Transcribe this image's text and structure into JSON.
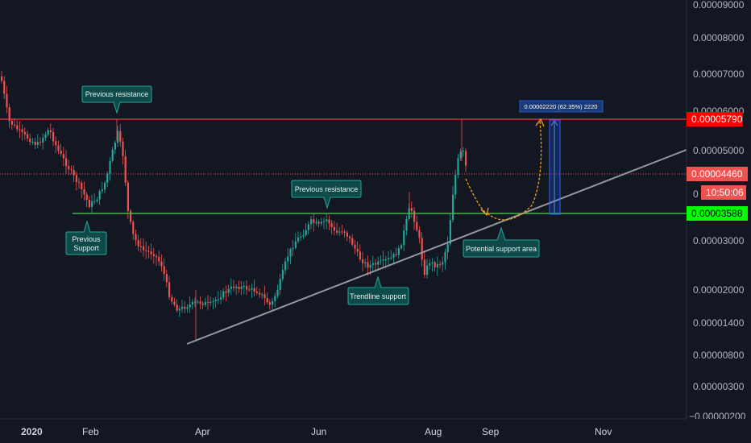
{
  "chart_data": {
    "type": "candlestick",
    "scale": "log",
    "colors": {
      "background": "#131722",
      "up": "#26a69a",
      "down": "#ef5350",
      "resistance_line": "#f23645",
      "support_line": "#4caf50",
      "trendline": "#9598a1",
      "projection": "#f7a21b",
      "measure": "#2962ff",
      "annotation_bg": "#0f4a4a",
      "annotation_border": "#26a69a"
    },
    "y_axis": {
      "ticks": [
        "0.00009000",
        "0.00008000",
        "0.00007000",
        "0.00006000",
        "0.00005000",
        "0.00003000",
        "0.00002000",
        "0.00001400",
        "0.00000800",
        "0.00000300",
        "−0.00000200"
      ],
      "partial_tick": "0"
    },
    "x_axis": {
      "ticks": [
        "2020",
        "Feb",
        "Apr",
        "Jun",
        "Aug",
        "Sep",
        "Nov"
      ]
    },
    "price_tags": {
      "resistance": "0.00005790",
      "last": "0.00004460",
      "countdown": "10:50:06",
      "support": "0.00003588"
    },
    "levels": {
      "resistance": 5.79e-05,
      "support": 3.588e-05,
      "last": 4.46e-05
    },
    "measure": {
      "label": "0.00002220 (62.35%) 2220"
    },
    "annotations": [
      {
        "key": "prev_res_1",
        "text": "Previous resistance",
        "pointer": "down"
      },
      {
        "key": "prev_support",
        "text": "Previous Support",
        "pointer": "up"
      },
      {
        "key": "prev_res_2",
        "text": "Previous resistance",
        "pointer": "down"
      },
      {
        "key": "trendline_support",
        "text": "Trendline support",
        "pointer": "up"
      },
      {
        "key": "potential_support",
        "text": "Potential support area",
        "pointer": "up"
      }
    ]
  }
}
